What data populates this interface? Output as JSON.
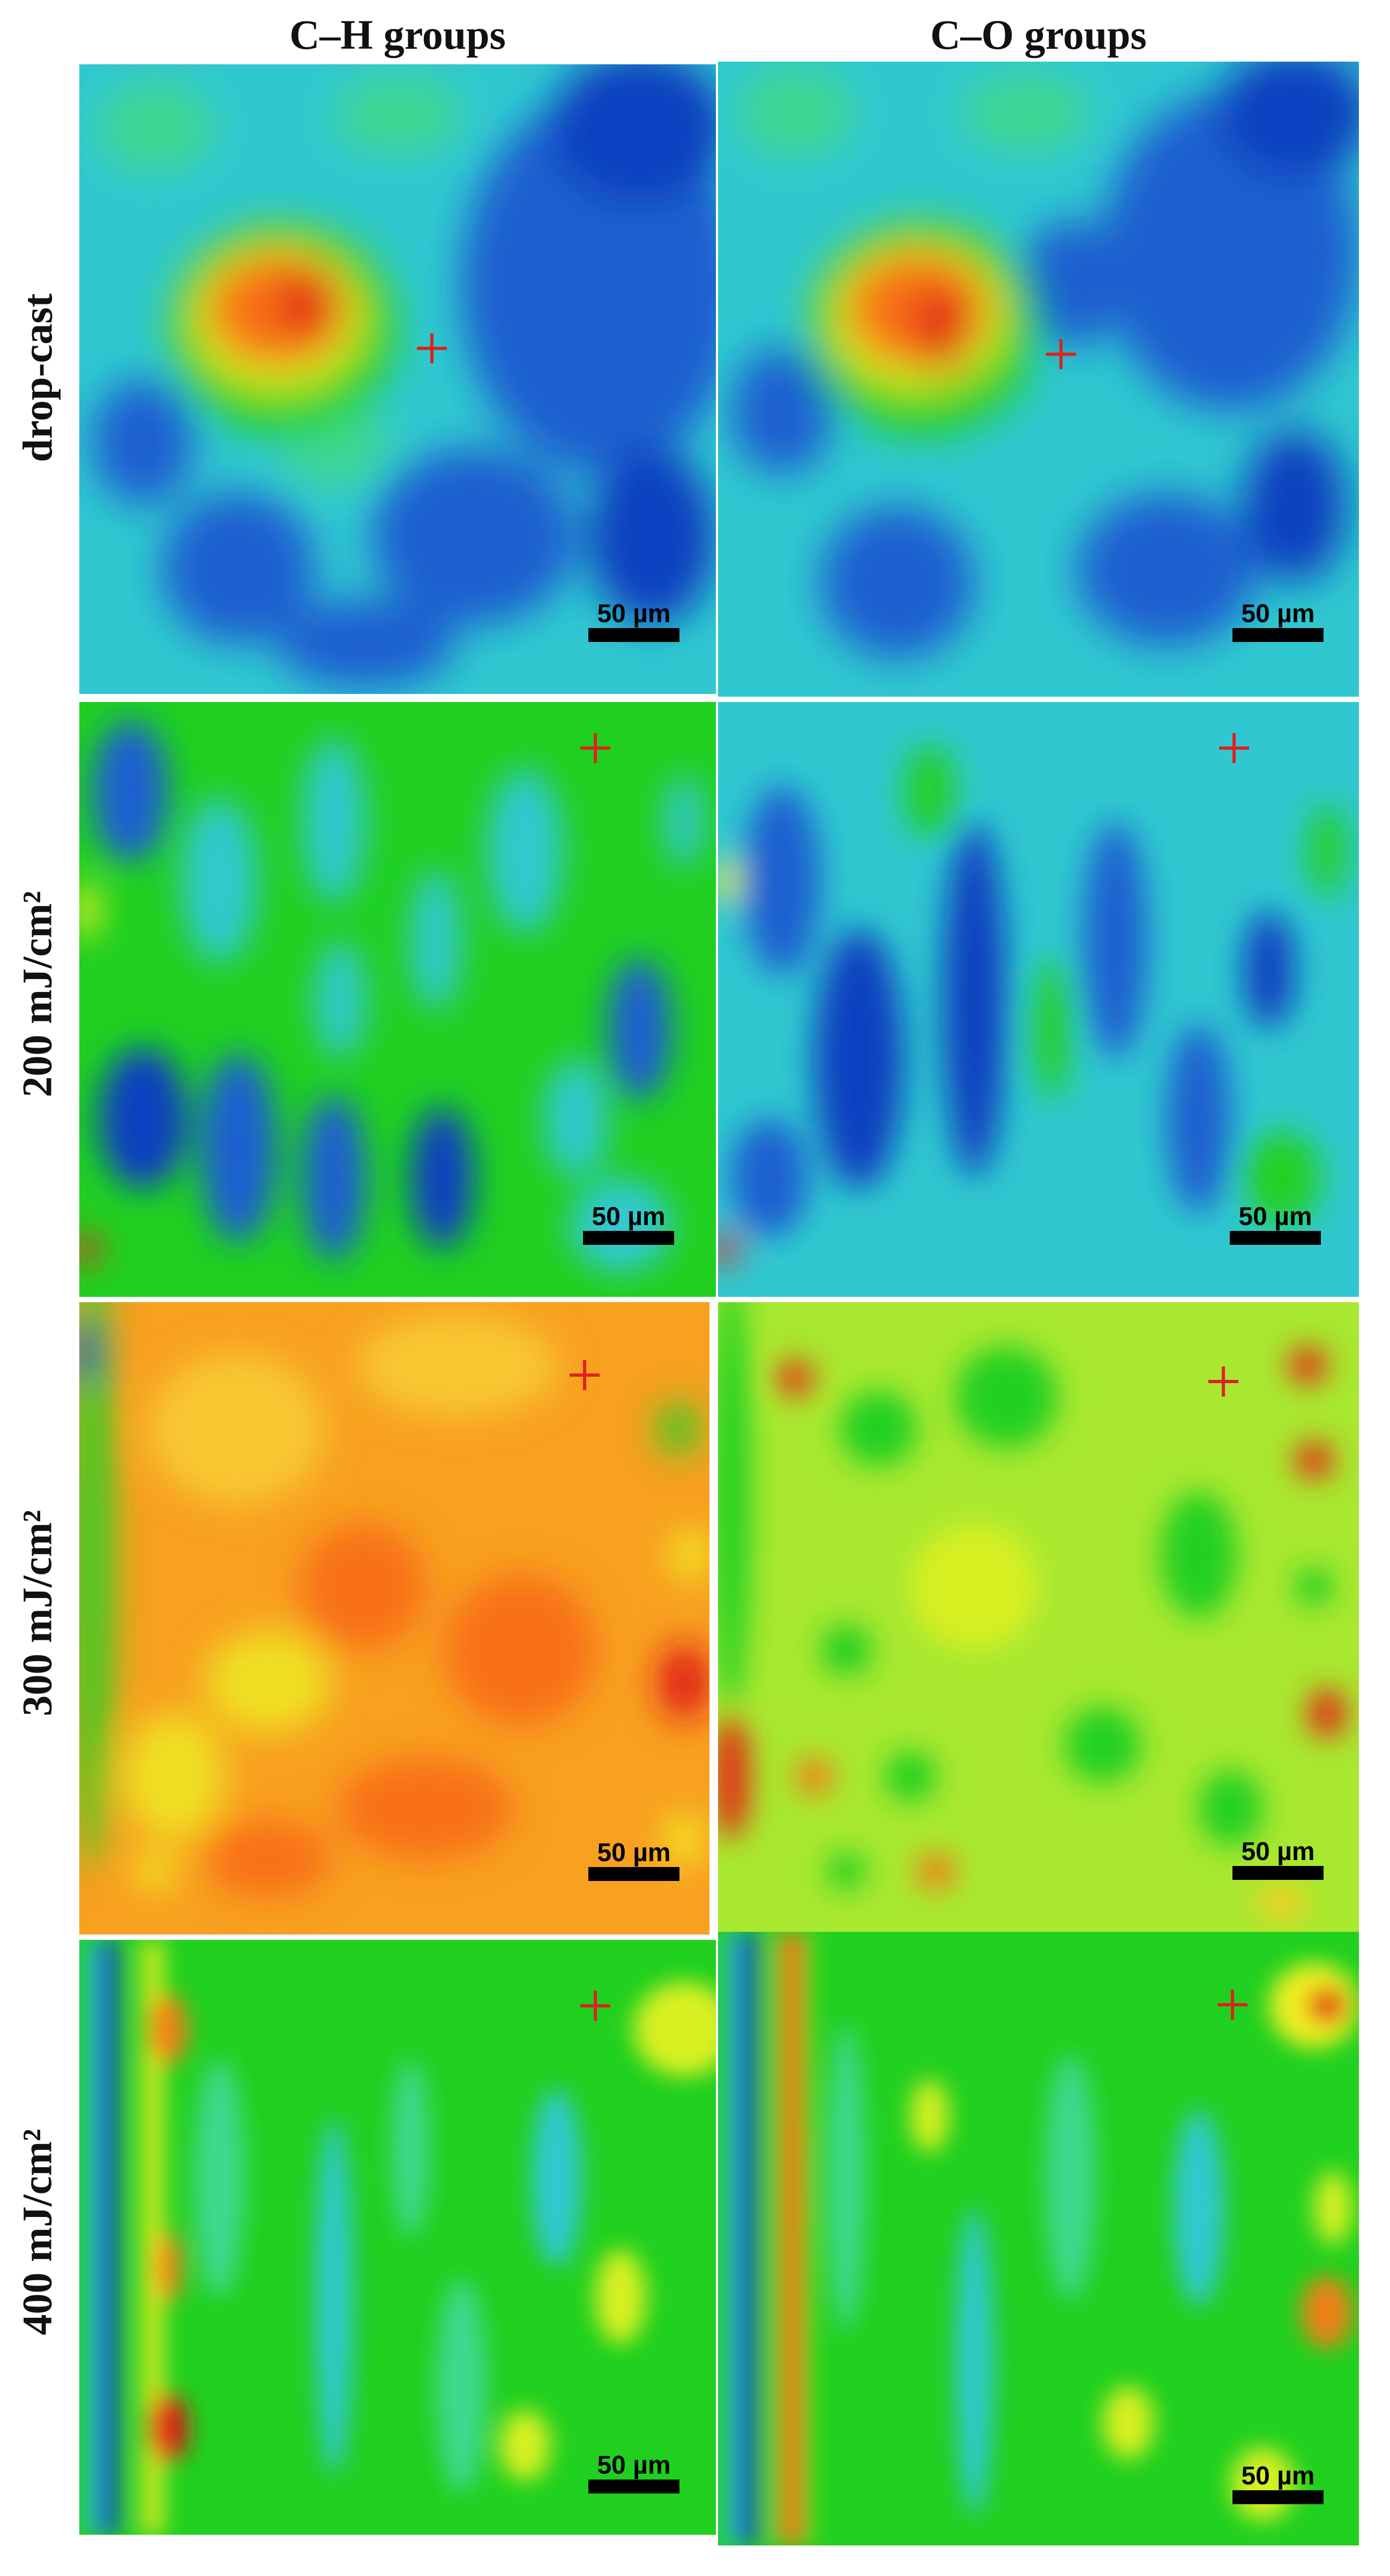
{
  "columns": [
    {
      "title": "C–H groups"
    },
    {
      "title": "C–O groups"
    }
  ],
  "rows": [
    {
      "label": "drop-cast"
    },
    {
      "label": "200 mJ/cm²"
    },
    {
      "label": "300 mJ/cm²"
    },
    {
      "label": "400 mJ/cm²"
    }
  ],
  "scale_bar": "50 µm",
  "colormap": {
    "low": "#1040c0",
    "mid_low": "#30c8d0",
    "mid": "#20d020",
    "mid_high": "#f0f020",
    "high": "#f03018"
  },
  "marker": {
    "icon": "red-cross-icon",
    "color": "#e02020"
  }
}
